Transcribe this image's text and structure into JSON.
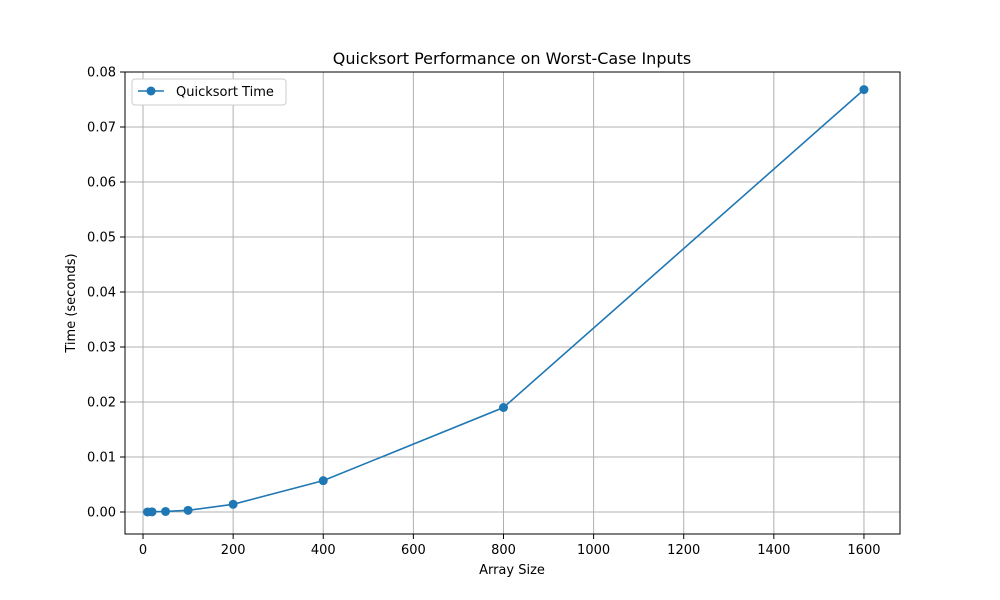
{
  "chart_data": {
    "type": "line",
    "title": "Quicksort Performance on Worst-Case Inputs",
    "xlabel": "Array Size",
    "ylabel": "Time (seconds)",
    "xlim": [
      -40,
      1680
    ],
    "ylim": [
      -0.004,
      0.08
    ],
    "xticks": [
      0,
      200,
      400,
      600,
      800,
      1000,
      1200,
      1400,
      1600
    ],
    "xtick_labels": [
      "0",
      "200",
      "400",
      "600",
      "800",
      "1000",
      "1200",
      "1400",
      "1600"
    ],
    "yticks": [
      0.0,
      0.01,
      0.02,
      0.03,
      0.04,
      0.05,
      0.06,
      0.07,
      0.08
    ],
    "ytick_labels": [
      "0.00",
      "0.01",
      "0.02",
      "0.03",
      "0.04",
      "0.05",
      "0.06",
      "0.07",
      "0.08"
    ],
    "grid": true,
    "legend_position": "top-left",
    "series": [
      {
        "name": "Quicksort Time",
        "color": "#1f77b4",
        "marker": "circle",
        "x": [
          10,
          20,
          50,
          100,
          200,
          400,
          800,
          1600
        ],
        "y": [
          1e-05,
          3e-05,
          0.0001,
          0.0003,
          0.0014,
          0.0057,
          0.019,
          0.0768
        ]
      }
    ]
  }
}
